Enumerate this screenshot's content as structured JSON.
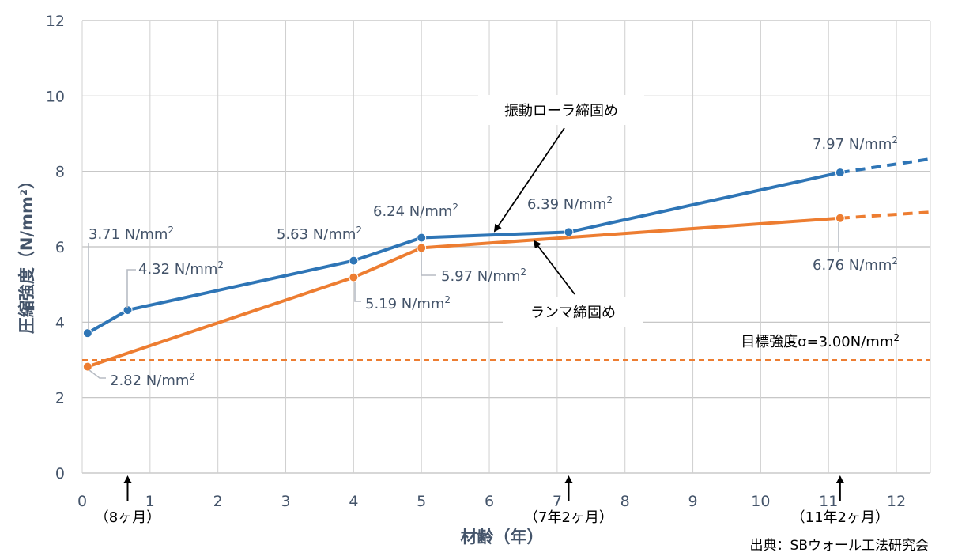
{
  "chart_data": {
    "type": "line",
    "xlabel": "材齢（年）",
    "ylabel": "圧縮強度（N/mm²）",
    "xlim": [
      0,
      12.5
    ],
    "ylim": [
      0,
      12
    ],
    "xticks": [
      "0",
      "1",
      "2",
      "3",
      "4",
      "5",
      "6",
      "7",
      "8",
      "9",
      "10",
      "11",
      "12"
    ],
    "yticks": [
      "0",
      "2",
      "4",
      "6",
      "8",
      "10",
      "12"
    ],
    "grid": true,
    "series": [
      {
        "name": "振動ローラ締固め",
        "color": "#2e75b6",
        "x": [
          0.08,
          0.67,
          4,
          5,
          7.17,
          11.17
        ],
        "y": [
          3.71,
          4.32,
          5.63,
          6.24,
          6.39,
          7.97
        ],
        "labels": [
          "3.71 N/mm²",
          "4.32 N/mm²",
          "5.63 N/mm²",
          "6.24 N/mm²",
          "6.39 N/mm²",
          "7.97 N/mm²"
        ],
        "extrapolation": {
          "x": [
            11.17,
            12.5
          ],
          "y": [
            7.97,
            8.33
          ]
        }
      },
      {
        "name": "ランマ締固め",
        "color": "#ed7d31",
        "x": [
          0.08,
          4,
          5,
          11.17
        ],
        "y": [
          2.82,
          5.19,
          5.97,
          6.76
        ],
        "labels": [
          "2.82 N/mm²",
          "5.19 N/mm²",
          "5.97 N/mm²",
          "6.76 N/mm²"
        ],
        "extrapolation": {
          "x": [
            11.17,
            12.5
          ],
          "y": [
            6.76,
            6.92
          ]
        }
      }
    ],
    "target_line": {
      "y": 3.0,
      "label": "目標強度σ=3.00N/mm²",
      "color": "#ed7d31"
    },
    "time_markers": [
      {
        "x": 0.67,
        "label": "（8ヶ月）"
      },
      {
        "x": 7.17,
        "label": "（7年2ヶ月）"
      },
      {
        "x": 11.17,
        "label": "（11年2ヶ月）"
      }
    ],
    "source_note": "出典：SBウォール工法研究会"
  }
}
